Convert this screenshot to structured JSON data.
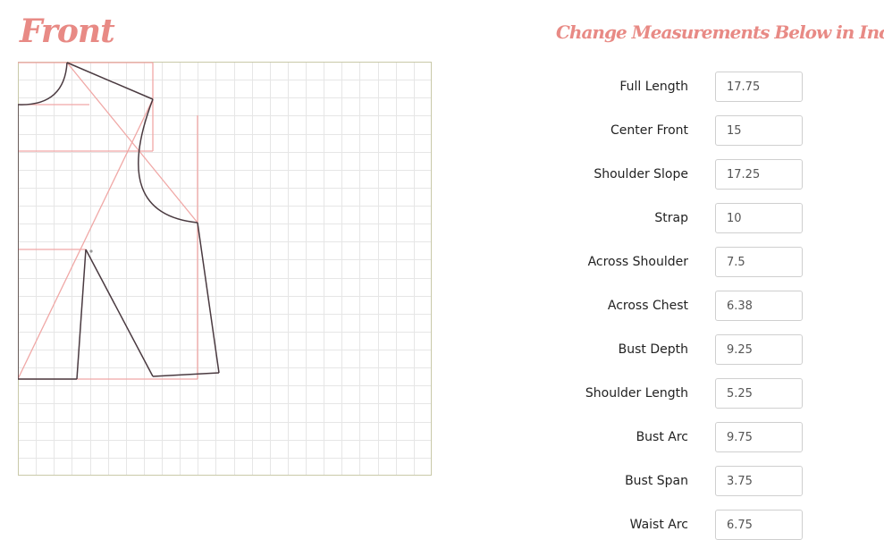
{
  "page": {
    "front_title": "Front",
    "measurements_title": "Change Measurements Below in Inches"
  },
  "measurements": [
    {
      "label": "Full Length",
      "value": "17.75"
    },
    {
      "label": "Center Front",
      "value": "15"
    },
    {
      "label": "Shoulder Slope",
      "value": "17.25"
    },
    {
      "label": "Strap",
      "value": "10"
    },
    {
      "label": "Across Shoulder",
      "value": "7.5"
    },
    {
      "label": "Across Chest",
      "value": "6.38"
    },
    {
      "label": "Bust Depth",
      "value": "9.25"
    },
    {
      "label": "Shoulder Length",
      "value": "5.25"
    },
    {
      "label": "Bust Arc",
      "value": "9.75"
    },
    {
      "label": "Bust Span",
      "value": "3.75"
    },
    {
      "label": "Waist Arc",
      "value": "6.75"
    }
  ],
  "colors": {
    "accent": "#e88a85",
    "grid": "#e6e6e6",
    "grid_border": "#c9c9a8",
    "pattern_line": "#4a3a40",
    "guide_line": "#f0a8a6"
  }
}
